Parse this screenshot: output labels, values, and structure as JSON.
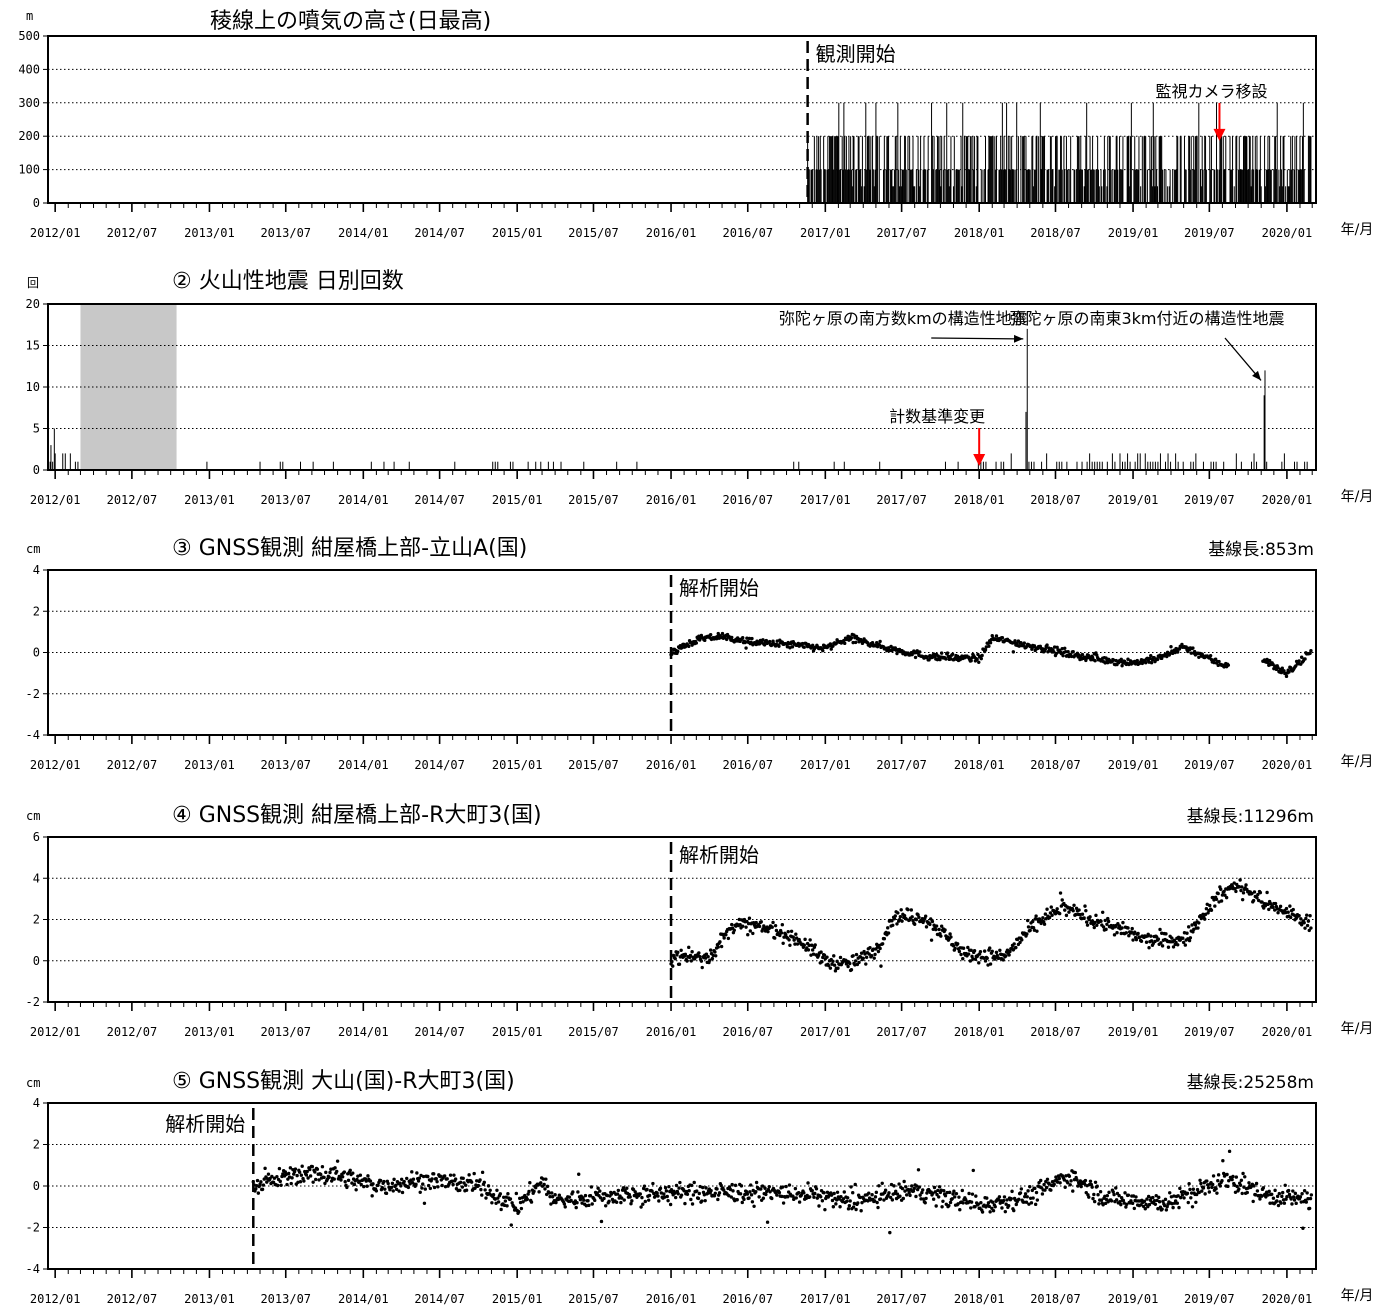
{
  "x_axis": {
    "tick_labels": [
      "2012/01",
      "2012/07",
      "2013/01",
      "2013/07",
      "2014/01",
      "2014/07",
      "2015/01",
      "2015/07",
      "2016/01",
      "2016/07",
      "2017/01",
      "2017/07",
      "2018/01",
      "2018/07",
      "2019/01",
      "2019/07",
      "2020/01"
    ],
    "unit_label": "年/月",
    "range": [
      "2011/12/15",
      "2020/03/10"
    ]
  },
  "colors": {
    "axis": "#000000",
    "grid": "#000000",
    "shade": "#c8c8c8",
    "arrow_red": "#ff0000",
    "data": "#000000"
  },
  "chart_data": [
    {
      "type": "bar",
      "title": "稜線上の噴気の高さ(日最高)",
      "ylabel": "m",
      "ylim": [
        0,
        500
      ],
      "yticks": [
        0,
        100,
        200,
        300,
        400,
        500
      ],
      "grid": "dotted",
      "start_marker": {
        "date": "2016/11/20",
        "label": "観測開始"
      },
      "annotations": [
        {
          "text": "監視カメラ移設",
          "date": "2019/07/25",
          "arrow": "red-down",
          "target_value": 180
        }
      ],
      "series": [
        {
          "description_values": {
            "typical": 100,
            "frequent": 200,
            "occasional": 300,
            "start": "2016/11/20",
            "end": "2020/02/28"
          }
        }
      ]
    },
    {
      "type": "bar",
      "title": "② 火山性地震 日別回数",
      "ylabel": "回",
      "ylim": [
        0,
        20
      ],
      "yticks": [
        0,
        5,
        10,
        15,
        20
      ],
      "grid": "dotted",
      "shaded_period": [
        "2012/03/01",
        "2012/10/15"
      ],
      "annotations": [
        {
          "text": "弥陀ヶ原の南方数kmの構造性地震",
          "date": "2018/04/25",
          "value": 17
        },
        {
          "text": "弥陀ヶ原の南東3km付近の構造性地震",
          "date": "2019/11/10",
          "value": 12
        },
        {
          "text": "計数基準変更",
          "date": "2018/01/01",
          "arrow": "red-down"
        }
      ],
      "spikes": [
        {
          "date": "2018/04/25",
          "value": 17
        },
        {
          "date": "2018/04/22",
          "value": 7
        },
        {
          "date": "2019/11/10",
          "value": 12
        },
        {
          "date": "2019/11/08",
          "value": 9
        },
        {
          "date": "2011/12/30",
          "value": 5
        },
        {
          "date": "2011/12/22",
          "value": 3
        }
      ]
    },
    {
      "type": "scatter",
      "title": "③ GNSS観測 紺屋橋上部-立山A(国)",
      "baseline": "基線長:853m",
      "ylabel": "cm",
      "ylim": [
        -4,
        4
      ],
      "yticks": [
        -4,
        -2,
        0,
        2,
        4
      ],
      "grid": "dotted",
      "start_marker": {
        "date": "2016/01/01",
        "label": "解析開始"
      },
      "trend_points": [
        [
          "2016/01/01",
          0.0
        ],
        [
          "2016/03/01",
          0.6
        ],
        [
          "2016/05/01",
          0.8
        ],
        [
          "2016/07/01",
          0.5
        ],
        [
          "2016/10/01",
          0.4
        ],
        [
          "2017/01/01",
          0.2
        ],
        [
          "2017/03/01",
          0.7
        ],
        [
          "2017/06/01",
          0.2
        ],
        [
          "2017/09/01",
          -0.2
        ],
        [
          "2018/01/01",
          -0.3
        ],
        [
          "2018/02/01",
          0.7
        ],
        [
          "2018/06/01",
          0.2
        ],
        [
          "2018/10/01",
          -0.3
        ],
        [
          "2019/01/01",
          -0.5
        ],
        [
          "2019/03/01",
          -0.3
        ],
        [
          "2019/05/01",
          0.3
        ],
        [
          "2019/08/01",
          -0.6
        ],
        [
          "2019/11/01",
          -0.3
        ],
        [
          "2020/01/01",
          -1.0
        ],
        [
          "2020/02/28",
          0.0
        ]
      ],
      "gaps": [
        [
          "2019/08/15",
          "2019/11/05"
        ]
      ]
    },
    {
      "type": "scatter",
      "title": "④ GNSS観測 紺屋橋上部-R大町3(国)",
      "baseline": "基線長:11296m",
      "ylabel": "cm",
      "ylim": [
        -2,
        6
      ],
      "yticks": [
        -2,
        0,
        2,
        4,
        6
      ],
      "grid": "dotted",
      "start_marker": {
        "date": "2016/01/01",
        "label": "解析開始"
      },
      "trend_points": [
        [
          "2016/01/01",
          0.2
        ],
        [
          "2016/04/01",
          0.2
        ],
        [
          "2016/06/01",
          1.8
        ],
        [
          "2016/09/01",
          1.5
        ],
        [
          "2016/11/01",
          1.0
        ],
        [
          "2017/01/01",
          0.0
        ],
        [
          "2017/03/01",
          -0.2
        ],
        [
          "2017/05/01",
          0.5
        ],
        [
          "2017/06/15",
          2.2
        ],
        [
          "2017/09/01",
          2.0
        ],
        [
          "2017/12/01",
          0.3
        ],
        [
          "2018/03/01",
          0.2
        ],
        [
          "2018/05/01",
          1.5
        ],
        [
          "2018/07/15",
          2.6
        ],
        [
          "2018/10/01",
          2.0
        ],
        [
          "2018/12/01",
          1.5
        ],
        [
          "2019/02/01",
          1.0
        ],
        [
          "2019/05/01",
          1.0
        ],
        [
          "2019/07/15",
          3.0
        ],
        [
          "2019/09/01",
          3.7
        ],
        [
          "2019/12/01",
          2.6
        ],
        [
          "2020/02/28",
          1.8
        ]
      ]
    },
    {
      "type": "scatter",
      "title": "⑤ GNSS観測 大山(国)-R大町3(国)",
      "baseline": "基線長:25258m",
      "ylabel": "cm",
      "ylim": [
        -4,
        4
      ],
      "yticks": [
        -4,
        -2,
        0,
        2,
        4
      ],
      "grid": "dotted",
      "start_marker": {
        "date": "2013/04/15",
        "label": "解析開始"
      },
      "trend_points": [
        [
          "2013/04/15",
          0.0
        ],
        [
          "2013/08/01",
          0.6
        ],
        [
          "2013/11/01",
          0.5
        ],
        [
          "2014/02/01",
          0.0
        ],
        [
          "2014/06/01",
          0.3
        ],
        [
          "2014/10/01",
          0.0
        ],
        [
          "2015/01/01",
          -1.0
        ],
        [
          "2015/03/01",
          0.2
        ],
        [
          "2015/04/01",
          -0.7
        ],
        [
          "2015/10/01",
          -0.4
        ],
        [
          "2016/06/01",
          -0.3
        ],
        [
          "2016/12/01",
          -0.4
        ],
        [
          "2017/03/01",
          -0.8
        ],
        [
          "2017/08/01",
          -0.2
        ],
        [
          "2018/01/01",
          -0.9
        ],
        [
          "2018/05/01",
          -0.5
        ],
        [
          "2018/08/01",
          0.5
        ],
        [
          "2018/11/01",
          -0.6
        ],
        [
          "2019/04/01",
          -0.8
        ],
        [
          "2019/08/15",
          0.4
        ],
        [
          "2019/11/01",
          -0.4
        ],
        [
          "2020/02/28",
          -0.7
        ]
      ]
    }
  ]
}
